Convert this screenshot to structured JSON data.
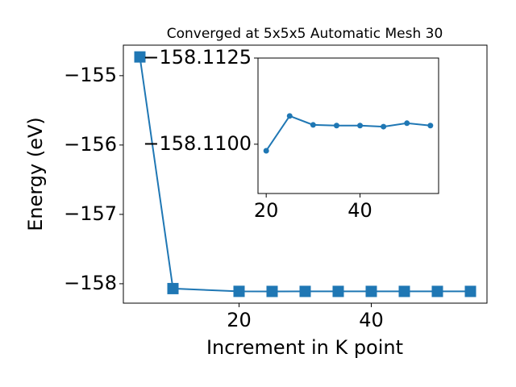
{
  "chart_data": [
    {
      "type": "line",
      "title": "Converged at 5x5x5 Automatic Mesh 30",
      "xlabel": "Increment in K point",
      "ylabel": "Energy (eV)",
      "x": [
        5,
        10,
        20,
        25,
        30,
        35,
        40,
        45,
        50,
        55
      ],
      "series": [
        {
          "color": "#1f77b4",
          "marker": "square",
          "values": [
            -154.73,
            -158.07,
            -158.10981,
            -158.11082,
            -158.11056,
            -158.11054,
            -158.11054,
            -158.11051,
            -158.11061,
            -158.11054
          ]
        }
      ],
      "xlim": [
        2.5,
        57.5
      ],
      "ylim": [
        -158.28,
        -154.56
      ],
      "xticks": [
        20,
        40
      ],
      "yticks": [
        {
          "value": -158,
          "label": "−158"
        },
        {
          "value": -157,
          "label": "−157"
        },
        {
          "value": -156,
          "label": "−156"
        },
        {
          "value": -155,
          "label": "−155"
        }
      ]
    },
    {
      "type": "line",
      "x": [
        20,
        25,
        30,
        35,
        40,
        45,
        50,
        55
      ],
      "series": [
        {
          "color": "#1f77b4",
          "marker": "circle",
          "values": [
            -158.10981,
            -158.11082,
            -158.11056,
            -158.11054,
            -158.11054,
            -158.11051,
            -158.11061,
            -158.11054
          ]
        }
      ],
      "xlim": [
        18.25,
        56.75
      ],
      "ylim": [
        -158.10857,
        -158.1125
      ],
      "xticks": [
        20,
        40
      ],
      "yticks": [
        {
          "value": -158.11,
          "label": "−158.1100"
        },
        {
          "value": -158.1125,
          "label": "−158.1125"
        }
      ]
    }
  ]
}
